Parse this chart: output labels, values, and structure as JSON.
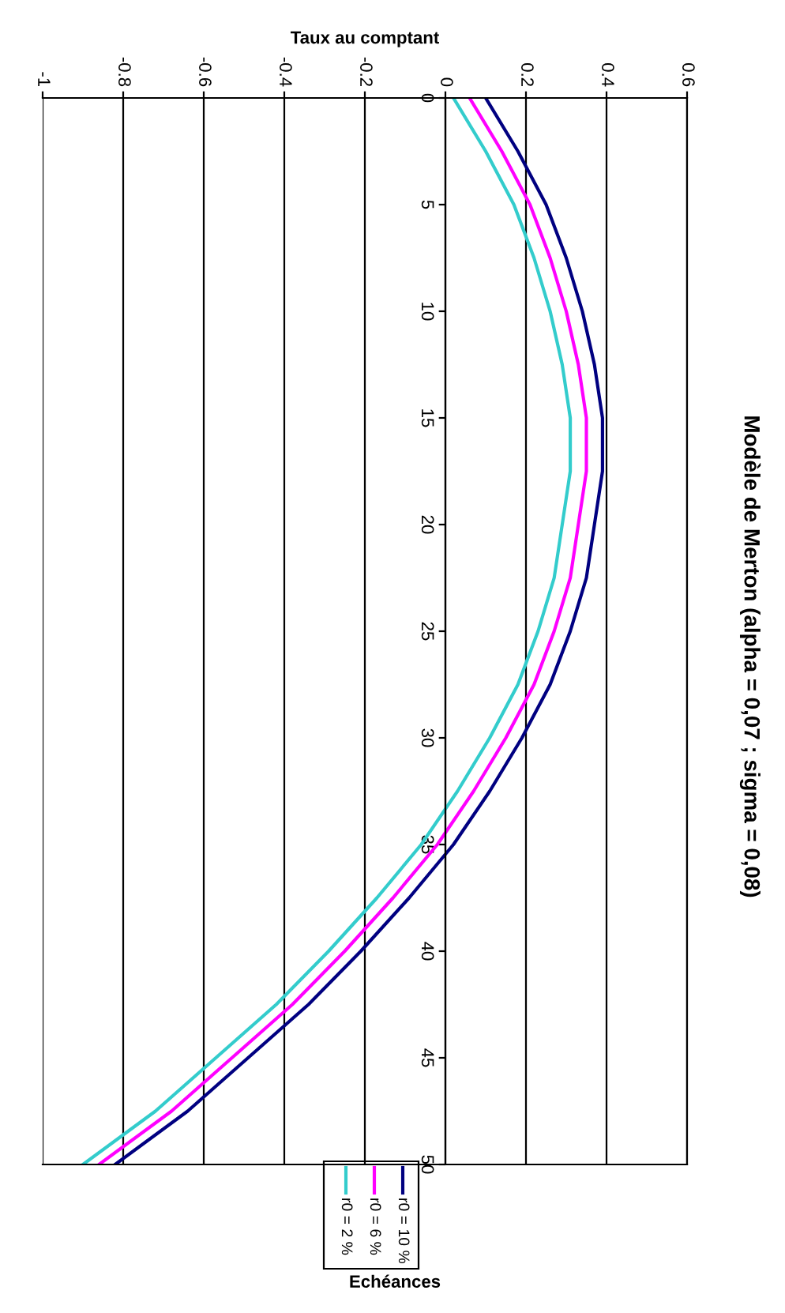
{
  "chart_data": {
    "type": "line",
    "title": "Modèle de Merton (alpha = 0,07 ; sigma = 0,08)",
    "xlabel": "Taux au comptant",
    "annotations": [
      "Echéances"
    ],
    "series": [
      {
        "name": "r0 = 10 %",
        "color": "#000080",
        "x": [
          0.1,
          0.18,
          0.25,
          0.3,
          0.34,
          0.37,
          0.39,
          0.39,
          0.37,
          0.35,
          0.31,
          0.26,
          0.19,
          0.11,
          0.02,
          -0.09,
          -0.21,
          -0.34,
          -0.49,
          -0.64,
          -0.82
        ],
        "values": [
          0,
          2.5,
          5,
          7.5,
          10,
          12.5,
          15,
          17.5,
          20,
          22.5,
          25,
          27.5,
          30,
          32.5,
          35,
          37.5,
          40,
          42.5,
          45,
          47.5,
          50
        ]
      },
      {
        "name": "r0 = 6 %",
        "color": "#ff00ff",
        "x": [
          0.06,
          0.14,
          0.21,
          0.26,
          0.3,
          0.33,
          0.35,
          0.35,
          0.33,
          0.31,
          0.27,
          0.22,
          0.15,
          0.07,
          -0.02,
          -0.13,
          -0.25,
          -0.38,
          -0.53,
          -0.68,
          -0.86
        ],
        "values": [
          0,
          2.5,
          5,
          7.5,
          10,
          12.5,
          15,
          17.5,
          20,
          22.5,
          25,
          27.5,
          30,
          32.5,
          35,
          37.5,
          40,
          42.5,
          45,
          47.5,
          50
        ]
      },
      {
        "name": "r0 = 2 %",
        "color": "#33cccc",
        "x": [
          0.02,
          0.1,
          0.17,
          0.22,
          0.26,
          0.29,
          0.31,
          0.31,
          0.29,
          0.27,
          0.23,
          0.18,
          0.11,
          0.03,
          -0.06,
          -0.17,
          -0.29,
          -0.42,
          -0.57,
          -0.72,
          -0.9
        ],
        "values": [
          0,
          2.5,
          5,
          7.5,
          10,
          12.5,
          15,
          17.5,
          20,
          22.5,
          25,
          27.5,
          30,
          32.5,
          35,
          37.5,
          40,
          42.5,
          45,
          47.5,
          50
        ]
      }
    ],
    "xlim": [
      -1,
      0.6
    ],
    "xticks": [
      -1,
      -0.8,
      -0.6,
      -0.4,
      -0.2,
      0,
      0.2,
      0.4,
      0.6
    ],
    "ylim": [
      50,
      0
    ],
    "yticks": [
      0,
      5,
      10,
      15,
      20,
      25,
      30,
      35,
      40,
      45,
      50
    ],
    "grid": "x",
    "legend": "bottom",
    "marker": "none",
    "line_style": "solid"
  }
}
